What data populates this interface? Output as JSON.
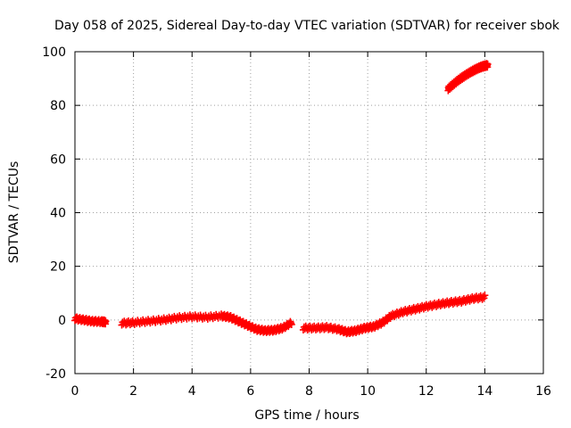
{
  "chart_data": {
    "type": "scatter",
    "title": "Day 058 of 2025, Sidereal Day-to-day VTEC variation (SDTVAR) for receiver sbok",
    "xlabel": "GPS time / hours",
    "ylabel": "SDTVAR / TECUs",
    "xlim": [
      0,
      16
    ],
    "ylim": [
      -20,
      100
    ],
    "xticks": [
      0,
      2,
      4,
      6,
      8,
      10,
      12,
      14,
      16
    ],
    "yticks": [
      -20,
      0,
      20,
      40,
      60,
      80,
      100
    ],
    "grid": true,
    "marker": "plus",
    "color": "#ff0000",
    "series": [
      {
        "name": "segment-1",
        "x": [
          0.0,
          0.3,
          0.6,
          0.9,
          1.05
        ],
        "y": [
          0.5,
          0.0,
          -0.5,
          -0.6,
          -0.8
        ]
      },
      {
        "name": "segment-2",
        "x": [
          1.6,
          2.0,
          2.5,
          3.0,
          3.5,
          4.0,
          4.5,
          5.0,
          5.3,
          5.6,
          5.9,
          6.2,
          6.5,
          6.8,
          7.1,
          7.4
        ],
        "y": [
          -1.2,
          -1.0,
          -0.5,
          0.0,
          0.8,
          1.2,
          1.0,
          1.5,
          1.0,
          -0.5,
          -2.0,
          -3.5,
          -4.0,
          -3.8,
          -3.0,
          -1.0
        ]
      },
      {
        "name": "segment-3",
        "x": [
          7.8,
          8.2,
          8.6,
          9.0,
          9.3,
          9.6,
          9.9,
          10.2,
          10.5,
          10.8,
          11.2,
          11.6,
          12.0,
          12.4,
          12.8,
          13.2,
          13.6,
          14.0
        ],
        "y": [
          -3.0,
          -3.0,
          -2.8,
          -3.5,
          -4.5,
          -4.0,
          -3.0,
          -2.5,
          -1.0,
          1.5,
          3.0,
          4.0,
          5.0,
          5.8,
          6.5,
          7.0,
          8.0,
          8.5
        ]
      },
      {
        "name": "segment-4",
        "x": [
          12.75,
          12.9,
          13.05,
          13.2,
          13.35,
          13.5,
          13.65,
          13.8,
          13.95,
          14.1
        ],
        "y": [
          86.2,
          87.6,
          89.0,
          90.2,
          91.3,
          92.3,
          93.2,
          94.0,
          94.6,
          95.0
        ]
      }
    ]
  }
}
